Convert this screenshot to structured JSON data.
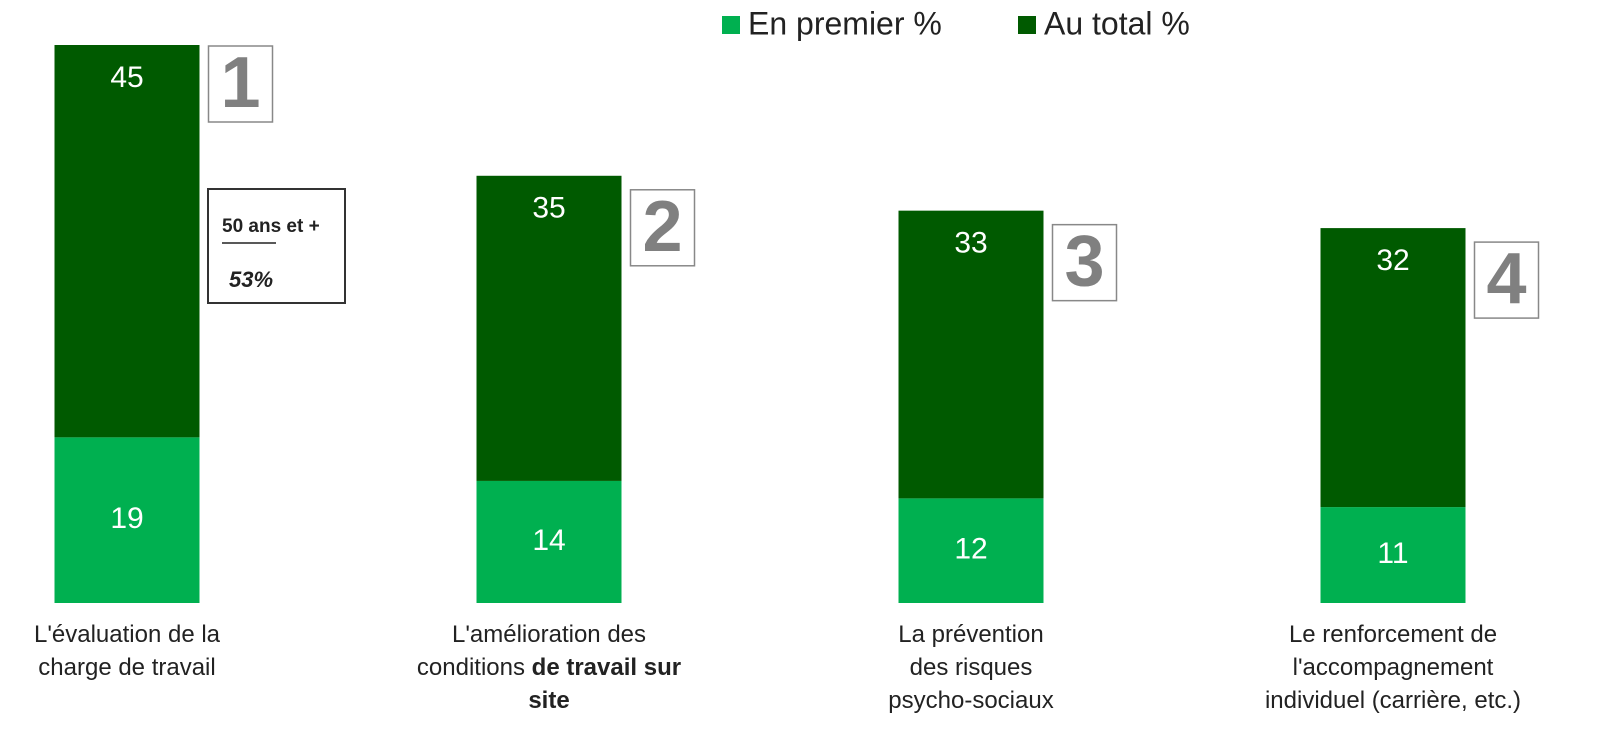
{
  "chart_data": {
    "type": "stacked_bar",
    "categories": [
      [
        {
          "text": "L'évaluation de la charge de travail",
          "bold": false
        }
      ],
      [
        {
          "text": "L'amélioration des conditions ",
          "bold": false
        },
        {
          "text": "de travail sur site",
          "bold": true
        }
      ],
      [
        {
          "text": "La prévention des risques psycho-sociaux",
          "bold": false
        }
      ],
      [
        {
          "text": "Le renforcement de l'accompagnement individuel (carrière, etc.)",
          "bold": false
        }
      ]
    ],
    "series": [
      {
        "name": "En premier %",
        "color": "#00b050",
        "values": [
          19,
          14,
          12,
          11
        ]
      },
      {
        "name": "Au total %",
        "color": "#005a00",
        "values": [
          45,
          35,
          33,
          32
        ]
      }
    ],
    "ylim": [
      0,
      64
    ],
    "ranks": [
      1,
      2,
      3,
      4
    ],
    "callout": {
      "label": "50 ans et +",
      "value": "53%"
    },
    "legend": "top"
  }
}
